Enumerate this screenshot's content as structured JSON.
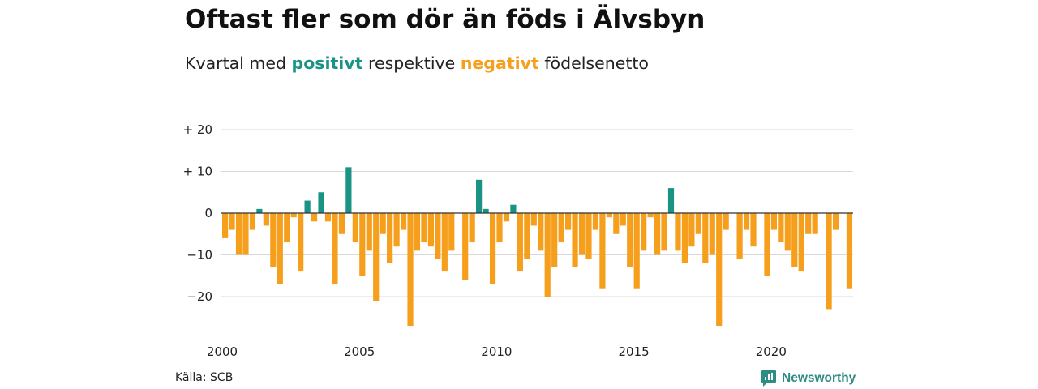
{
  "title": "Oftast fler som dör än föds i Älvsbyn",
  "subtitle": {
    "prefix": "Kvartal med",
    "positive_word": "positivt",
    "middle": "respektive",
    "negative_word": "negativt",
    "suffix": "födelsenetto"
  },
  "colors": {
    "positive": "#1a9385",
    "negative": "#f59f1c",
    "grid": "#d9d9d9",
    "zero_line": "#333333",
    "brand": "#2d8c83"
  },
  "source": "Källa: SCB",
  "brand": {
    "name": "Newsworthy",
    "icon": "newsworthy-logo-icon"
  },
  "chart_data": {
    "type": "bar",
    "title": "Oftast fler som dör än föds i Älvsbyn",
    "subtitle": "Kvartal med positivt respektive negativt födelsenetto",
    "xlabel": "",
    "ylabel": "",
    "x_start": "2000 Q1",
    "x_ticks": [
      "2000",
      "2005",
      "2010",
      "2015",
      "2020"
    ],
    "y_ticks": [
      {
        "value": 20,
        "label": "+ 20"
      },
      {
        "value": 10,
        "label": "+ 10"
      },
      {
        "value": 0,
        "label": "0"
      },
      {
        "value": -10,
        "label": "−10"
      },
      {
        "value": -20,
        "label": "−20"
      }
    ],
    "ylim": [
      -27,
      20
    ],
    "grid": true,
    "values": [
      -6,
      -4,
      -10,
      -10,
      -4,
      1,
      -3,
      -13,
      -17,
      -7,
      -1,
      -14,
      3,
      -2,
      5,
      -2,
      -17,
      -5,
      11,
      -7,
      -15,
      -9,
      -21,
      -5,
      -12,
      -8,
      -4,
      -27,
      -9,
      -7,
      -8,
      -11,
      -14,
      -9,
      0,
      -16,
      -7,
      8,
      1,
      -17,
      -7,
      -2,
      2,
      -14,
      -11,
      -3,
      -9,
      -20,
      -13,
      -7,
      -4,
      -13,
      -10,
      -11,
      -4,
      -18,
      -1,
      -5,
      -3,
      -13,
      -18,
      -9,
      -1,
      -10,
      -9,
      6,
      -9,
      -12,
      -8,
      -5,
      -12,
      -10,
      -27,
      -4,
      0,
      -11,
      -4,
      -8,
      0,
      -15,
      -4,
      -7,
      -9,
      -13,
      -14,
      -5,
      -5,
      0,
      -23,
      -4,
      0,
      -18
    ]
  }
}
